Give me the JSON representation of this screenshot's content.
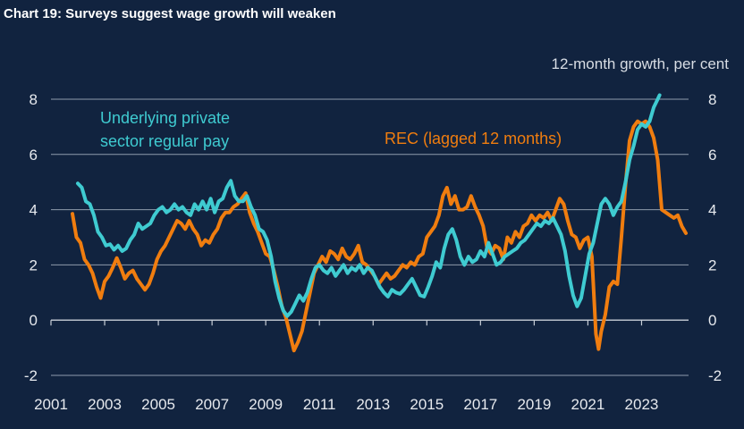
{
  "chart_data": {
    "type": "line",
    "title": "Chart 19: Surveys suggest wage growth will weaken",
    "unit_label": "12-month growth, per cent",
    "xlabel": "",
    "ylabel": "",
    "xlim": [
      2001,
      2024.75
    ],
    "ylim": [
      -2,
      8
    ],
    "x_ticks": [
      2001,
      2003,
      2005,
      2007,
      2009,
      2011,
      2013,
      2015,
      2017,
      2019,
      2021,
      2023
    ],
    "y_ticks": [
      -2,
      0,
      2,
      4,
      6,
      8
    ],
    "grid": "horizontal",
    "series": [
      {
        "name": "Underlying private sector regular pay",
        "label_lines": [
          "Underlying private",
          "sector regular pay"
        ],
        "color": "#3fcbd1",
        "points": [
          [
            2002.0,
            4.95
          ],
          [
            2002.15,
            4.8
          ],
          [
            2002.3,
            4.3
          ],
          [
            2002.45,
            4.2
          ],
          [
            2002.6,
            3.8
          ],
          [
            2002.75,
            3.2
          ],
          [
            2002.9,
            3.0
          ],
          [
            2003.05,
            2.7
          ],
          [
            2003.2,
            2.75
          ],
          [
            2003.35,
            2.55
          ],
          [
            2003.5,
            2.7
          ],
          [
            2003.65,
            2.5
          ],
          [
            2003.8,
            2.6
          ],
          [
            2003.95,
            2.9
          ],
          [
            2004.1,
            3.1
          ],
          [
            2004.25,
            3.5
          ],
          [
            2004.4,
            3.3
          ],
          [
            2004.55,
            3.4
          ],
          [
            2004.7,
            3.5
          ],
          [
            2004.85,
            3.8
          ],
          [
            2005.0,
            4.0
          ],
          [
            2005.15,
            4.1
          ],
          [
            2005.3,
            3.9
          ],
          [
            2005.45,
            4.0
          ],
          [
            2005.6,
            4.2
          ],
          [
            2005.75,
            4.0
          ],
          [
            2005.9,
            4.1
          ],
          [
            2006.05,
            3.9
          ],
          [
            2006.2,
            3.8
          ],
          [
            2006.35,
            4.2
          ],
          [
            2006.5,
            4.0
          ],
          [
            2006.65,
            4.3
          ],
          [
            2006.8,
            4.0
          ],
          [
            2006.95,
            4.4
          ],
          [
            2007.1,
            3.9
          ],
          [
            2007.25,
            4.3
          ],
          [
            2007.4,
            4.4
          ],
          [
            2007.55,
            4.8
          ],
          [
            2007.7,
            5.05
          ],
          [
            2007.85,
            4.5
          ],
          [
            2008.0,
            4.3
          ],
          [
            2008.15,
            4.3
          ],
          [
            2008.3,
            4.5
          ],
          [
            2008.45,
            4.1
          ],
          [
            2008.6,
            3.8
          ],
          [
            2008.75,
            3.3
          ],
          [
            2008.9,
            3.2
          ],
          [
            2009.05,
            2.9
          ],
          [
            2009.2,
            2.3
          ],
          [
            2009.35,
            1.4
          ],
          [
            2009.5,
            0.8
          ],
          [
            2009.65,
            0.35
          ],
          [
            2009.8,
            0.15
          ],
          [
            2009.95,
            0.3
          ],
          [
            2010.1,
            0.6
          ],
          [
            2010.25,
            0.9
          ],
          [
            2010.4,
            0.7
          ],
          [
            2010.55,
            1.0
          ],
          [
            2010.7,
            1.5
          ],
          [
            2010.85,
            1.9
          ],
          [
            2011.0,
            2.0
          ],
          [
            2011.15,
            1.8
          ],
          [
            2011.3,
            1.7
          ],
          [
            2011.45,
            1.9
          ],
          [
            2011.6,
            1.6
          ],
          [
            2011.75,
            1.8
          ],
          [
            2011.9,
            2.0
          ],
          [
            2012.05,
            1.7
          ],
          [
            2012.2,
            1.9
          ],
          [
            2012.35,
            1.8
          ],
          [
            2012.5,
            2.0
          ],
          [
            2012.65,
            1.7
          ],
          [
            2012.8,
            1.9
          ],
          [
            2012.95,
            1.8
          ],
          [
            2013.1,
            1.5
          ],
          [
            2013.25,
            1.2
          ],
          [
            2013.4,
            1.0
          ],
          [
            2013.55,
            0.85
          ],
          [
            2013.7,
            1.1
          ],
          [
            2013.85,
            1.0
          ],
          [
            2014.0,
            0.95
          ],
          [
            2014.15,
            1.1
          ],
          [
            2014.3,
            1.3
          ],
          [
            2014.45,
            1.5
          ],
          [
            2014.6,
            1.2
          ],
          [
            2014.75,
            0.9
          ],
          [
            2014.9,
            0.85
          ],
          [
            2015.05,
            1.2
          ],
          [
            2015.2,
            1.6
          ],
          [
            2015.35,
            2.1
          ],
          [
            2015.5,
            1.9
          ],
          [
            2015.65,
            2.6
          ],
          [
            2015.8,
            3.1
          ],
          [
            2015.95,
            3.3
          ],
          [
            2016.1,
            2.9
          ],
          [
            2016.25,
            2.3
          ],
          [
            2016.4,
            2.0
          ],
          [
            2016.55,
            2.3
          ],
          [
            2016.7,
            2.1
          ],
          [
            2016.85,
            2.2
          ],
          [
            2017.0,
            2.5
          ],
          [
            2017.15,
            2.3
          ],
          [
            2017.3,
            2.8
          ],
          [
            2017.45,
            2.4
          ],
          [
            2017.6,
            2.0
          ],
          [
            2017.75,
            2.1
          ],
          [
            2017.9,
            2.3
          ],
          [
            2018.05,
            2.4
          ],
          [
            2018.2,
            2.5
          ],
          [
            2018.35,
            2.6
          ],
          [
            2018.5,
            2.8
          ],
          [
            2018.65,
            2.9
          ],
          [
            2018.8,
            3.1
          ],
          [
            2018.95,
            3.3
          ],
          [
            2019.1,
            3.5
          ],
          [
            2019.25,
            3.4
          ],
          [
            2019.4,
            3.6
          ],
          [
            2019.55,
            3.5
          ],
          [
            2019.7,
            3.7
          ],
          [
            2019.85,
            3.4
          ],
          [
            2020.0,
            3.1
          ],
          [
            2020.15,
            2.5
          ],
          [
            2020.3,
            1.6
          ],
          [
            2020.45,
            0.9
          ],
          [
            2020.6,
            0.5
          ],
          [
            2020.75,
            0.8
          ],
          [
            2020.9,
            1.6
          ],
          [
            2021.05,
            2.4
          ],
          [
            2021.2,
            2.8
          ],
          [
            2021.35,
            3.5
          ],
          [
            2021.5,
            4.2
          ],
          [
            2021.65,
            4.4
          ],
          [
            2021.8,
            4.2
          ],
          [
            2021.95,
            3.8
          ],
          [
            2022.1,
            4.1
          ],
          [
            2022.25,
            4.3
          ],
          [
            2022.4,
            5.0
          ],
          [
            2022.55,
            5.8
          ],
          [
            2022.7,
            6.3
          ],
          [
            2022.85,
            6.9
          ],
          [
            2023.0,
            7.1
          ],
          [
            2023.15,
            7.0
          ],
          [
            2023.3,
            7.2
          ],
          [
            2023.45,
            7.7
          ],
          [
            2023.6,
            8.0
          ],
          [
            2023.67,
            8.15
          ]
        ]
      },
      {
        "name": "REC (lagged 12 months)",
        "color": "#f07d0f",
        "points": [
          [
            2001.8,
            3.85
          ],
          [
            2001.95,
            3.0
          ],
          [
            2002.1,
            2.8
          ],
          [
            2002.25,
            2.2
          ],
          [
            2002.4,
            2.0
          ],
          [
            2002.55,
            1.7
          ],
          [
            2002.7,
            1.2
          ],
          [
            2002.85,
            0.8
          ],
          [
            2003.0,
            1.4
          ],
          [
            2003.15,
            1.6
          ],
          [
            2003.3,
            1.9
          ],
          [
            2003.45,
            2.25
          ],
          [
            2003.6,
            1.9
          ],
          [
            2003.75,
            1.5
          ],
          [
            2003.9,
            1.7
          ],
          [
            2004.05,
            1.8
          ],
          [
            2004.2,
            1.5
          ],
          [
            2004.35,
            1.3
          ],
          [
            2004.5,
            1.1
          ],
          [
            2004.65,
            1.3
          ],
          [
            2004.8,
            1.7
          ],
          [
            2004.95,
            2.2
          ],
          [
            2005.1,
            2.5
          ],
          [
            2005.25,
            2.7
          ],
          [
            2005.4,
            3.0
          ],
          [
            2005.55,
            3.3
          ],
          [
            2005.7,
            3.6
          ],
          [
            2005.85,
            3.5
          ],
          [
            2006.0,
            3.3
          ],
          [
            2006.15,
            3.6
          ],
          [
            2006.3,
            3.3
          ],
          [
            2006.45,
            3.1
          ],
          [
            2006.6,
            2.7
          ],
          [
            2006.75,
            2.9
          ],
          [
            2006.9,
            2.8
          ],
          [
            2007.05,
            3.1
          ],
          [
            2007.2,
            3.3
          ],
          [
            2007.35,
            3.7
          ],
          [
            2007.5,
            3.9
          ],
          [
            2007.65,
            3.9
          ],
          [
            2007.8,
            4.1
          ],
          [
            2007.95,
            4.2
          ],
          [
            2008.1,
            4.4
          ],
          [
            2008.25,
            4.6
          ],
          [
            2008.4,
            3.9
          ],
          [
            2008.55,
            3.5
          ],
          [
            2008.7,
            3.2
          ],
          [
            2008.85,
            2.8
          ],
          [
            2009.0,
            2.4
          ],
          [
            2009.15,
            2.3
          ],
          [
            2009.3,
            1.8
          ],
          [
            2009.45,
            1.2
          ],
          [
            2009.6,
            0.5
          ],
          [
            2009.75,
            0.1
          ],
          [
            2009.9,
            -0.5
          ],
          [
            2010.05,
            -1.1
          ],
          [
            2010.2,
            -0.8
          ],
          [
            2010.35,
            -0.4
          ],
          [
            2010.5,
            0.3
          ],
          [
            2010.65,
            1.0
          ],
          [
            2010.8,
            1.7
          ],
          [
            2010.95,
            2.0
          ],
          [
            2011.1,
            2.3
          ],
          [
            2011.25,
            2.1
          ],
          [
            2011.4,
            2.5
          ],
          [
            2011.55,
            2.4
          ],
          [
            2011.7,
            2.2
          ],
          [
            2011.85,
            2.6
          ],
          [
            2012.0,
            2.3
          ],
          [
            2012.15,
            2.2
          ],
          [
            2012.3,
            2.4
          ],
          [
            2012.45,
            2.7
          ],
          [
            2012.6,
            2.1
          ],
          [
            2012.75,
            2.0
          ],
          [
            2012.9,
            1.8
          ],
          [
            2013.05,
            1.6
          ],
          [
            2013.2,
            1.3
          ],
          [
            2013.35,
            1.5
          ],
          [
            2013.5,
            1.7
          ],
          [
            2013.65,
            1.5
          ],
          [
            2013.8,
            1.6
          ],
          [
            2013.95,
            1.8
          ],
          [
            2014.1,
            2.0
          ],
          [
            2014.25,
            1.9
          ],
          [
            2014.4,
            2.1
          ],
          [
            2014.55,
            2.0
          ],
          [
            2014.7,
            2.3
          ],
          [
            2014.85,
            2.4
          ],
          [
            2015.0,
            3.0
          ],
          [
            2015.15,
            3.2
          ],
          [
            2015.3,
            3.4
          ],
          [
            2015.45,
            3.8
          ],
          [
            2015.6,
            4.5
          ],
          [
            2015.75,
            4.8
          ],
          [
            2015.9,
            4.2
          ],
          [
            2016.05,
            4.5
          ],
          [
            2016.2,
            4.0
          ],
          [
            2016.35,
            4.0
          ],
          [
            2016.5,
            4.1
          ],
          [
            2016.65,
            4.5
          ],
          [
            2016.8,
            4.1
          ],
          [
            2016.95,
            3.8
          ],
          [
            2017.1,
            3.4
          ],
          [
            2017.25,
            2.6
          ],
          [
            2017.4,
            2.4
          ],
          [
            2017.55,
            2.7
          ],
          [
            2017.7,
            2.6
          ],
          [
            2017.85,
            2.2
          ],
          [
            2018.0,
            3.0
          ],
          [
            2018.15,
            2.8
          ],
          [
            2018.3,
            3.2
          ],
          [
            2018.45,
            3.0
          ],
          [
            2018.6,
            3.4
          ],
          [
            2018.75,
            3.5
          ],
          [
            2018.9,
            3.8
          ],
          [
            2019.05,
            3.6
          ],
          [
            2019.2,
            3.8
          ],
          [
            2019.35,
            3.7
          ],
          [
            2019.5,
            3.9
          ],
          [
            2019.65,
            3.6
          ],
          [
            2019.8,
            4.0
          ],
          [
            2019.95,
            4.4
          ],
          [
            2020.1,
            4.2
          ],
          [
            2020.25,
            3.6
          ],
          [
            2020.4,
            3.1
          ],
          [
            2020.55,
            3.0
          ],
          [
            2020.7,
            2.6
          ],
          [
            2020.85,
            2.9
          ],
          [
            2021.0,
            3.0
          ],
          [
            2021.15,
            2.3
          ],
          [
            2021.3,
            -0.5
          ],
          [
            2021.4,
            -1.05
          ],
          [
            2021.5,
            -0.4
          ],
          [
            2021.65,
            0.2
          ],
          [
            2021.8,
            1.2
          ],
          [
            2021.95,
            1.4
          ],
          [
            2022.1,
            1.3
          ],
          [
            2022.25,
            3.0
          ],
          [
            2022.4,
            4.9
          ],
          [
            2022.55,
            6.5
          ],
          [
            2022.7,
            7.0
          ],
          [
            2022.85,
            7.2
          ],
          [
            2023.0,
            7.1
          ],
          [
            2023.15,
            7.2
          ],
          [
            2023.3,
            7.0
          ],
          [
            2023.45,
            6.6
          ],
          [
            2023.6,
            5.8
          ],
          [
            2023.75,
            4.0
          ],
          [
            2023.9,
            3.9
          ],
          [
            2024.05,
            3.8
          ],
          [
            2024.2,
            3.7
          ],
          [
            2024.35,
            3.8
          ],
          [
            2024.5,
            3.4
          ],
          [
            2024.65,
            3.15
          ]
        ]
      }
    ]
  }
}
